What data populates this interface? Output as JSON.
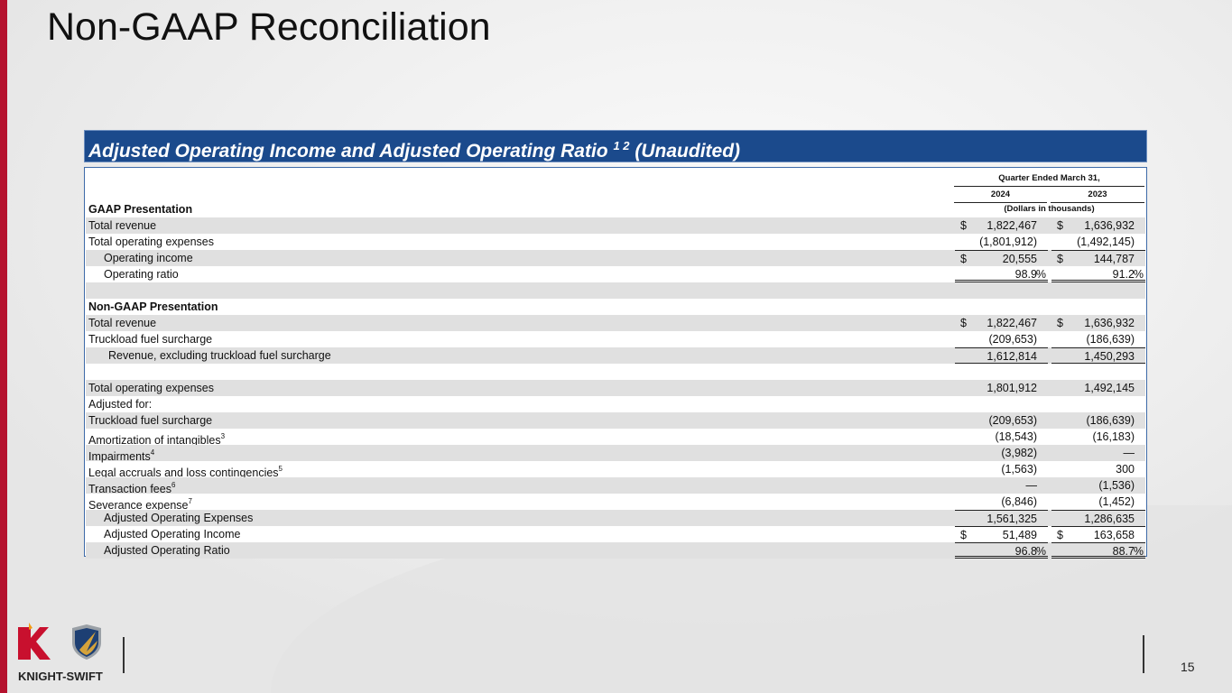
{
  "page_title": "Non-GAAP Reconciliation",
  "table_title": {
    "text": "Adjusted Operating Income and Adjusted Operating Ratio",
    "sup": "1 2",
    "suffix": "(Unaudited)"
  },
  "header": {
    "period": "Quarter Ended March 31,",
    "years": [
      "2024",
      "2023"
    ],
    "units": "(Dollars in thousands)"
  },
  "rows": [
    {
      "label": "GAAP Presentation",
      "bold": true
    },
    {
      "label": "Total revenue",
      "shade": true,
      "v": [
        "$",
        "1,822,467",
        "",
        "$",
        "1,636,932",
        ""
      ]
    },
    {
      "label": "Total operating expenses",
      "v": [
        "",
        "(1,801,912)",
        "",
        "",
        "(1,492,145)",
        ""
      ]
    },
    {
      "label": "Operating income",
      "indent": true,
      "shade": true,
      "v": [
        "$",
        "20,555",
        "",
        "$",
        "144,787",
        ""
      ]
    },
    {
      "label": "Operating ratio",
      "indent": true,
      "v": [
        "",
        "98.9",
        "%",
        "",
        "91.2",
        "%"
      ]
    },
    {
      "label": "",
      "shade": true
    },
    {
      "label": "Non-GAAP Presentation",
      "bold": true
    },
    {
      "label": "Total revenue",
      "shade": true,
      "v": [
        "$",
        "1,822,467",
        "",
        "$",
        "1,636,932",
        ""
      ]
    },
    {
      "label": "Truckload fuel surcharge",
      "v": [
        "",
        "(209,653)",
        "",
        "",
        "(186,639)",
        ""
      ]
    },
    {
      "label": "Revenue, excluding truckload fuel surcharge",
      "indent2": true,
      "shade": true,
      "v": [
        "",
        "1,612,814",
        "",
        "",
        "1,450,293",
        ""
      ]
    },
    {
      "label": ""
    },
    {
      "label": "Total operating expenses",
      "shade": true,
      "v": [
        "",
        "1,801,912",
        "",
        "",
        "1,492,145",
        ""
      ]
    },
    {
      "label": "Adjusted for:"
    },
    {
      "label": "Truckload fuel surcharge",
      "shade": true,
      "v": [
        "",
        "(209,653)",
        "",
        "",
        "(186,639)",
        ""
      ]
    },
    {
      "label": "Amortization of intangibles",
      "sup": "3",
      "v": [
        "",
        "(18,543)",
        "",
        "",
        "(16,183)",
        ""
      ]
    },
    {
      "label": "Impairments",
      "sup": "4",
      "shade": true,
      "v": [
        "",
        "(3,982)",
        "",
        "",
        "—",
        ""
      ]
    },
    {
      "label": "Legal accruals and loss contingencies",
      "sup": "5",
      "v": [
        "",
        "(1,563)",
        "",
        "",
        "300",
        ""
      ]
    },
    {
      "label": "Transaction fees",
      "sup": "6",
      "shade": true,
      "v": [
        "",
        "—",
        "",
        "",
        "(1,536)",
        ""
      ]
    },
    {
      "label": "Severance expense",
      "sup": "7",
      "v": [
        "",
        "(6,846)",
        "",
        "",
        "(1,452)",
        ""
      ]
    },
    {
      "label": "Adjusted Operating Expenses",
      "indent": true,
      "shade": true,
      "v": [
        "",
        "1,561,325",
        "",
        "",
        "1,286,635",
        ""
      ]
    },
    {
      "label": "Adjusted Operating Income",
      "indent": true,
      "v": [
        "$",
        "51,489",
        "",
        "$",
        "163,658",
        ""
      ]
    },
    {
      "label": "Adjusted Operating Ratio",
      "indent": true,
      "shade": true,
      "v": [
        "",
        "96.8",
        "%",
        "",
        "88.7",
        "%"
      ]
    }
  ],
  "footer": {
    "logo_text": "KNIGHT-SWIFT",
    "page_number": "15"
  },
  "colors": {
    "brand_red": "#b5122e",
    "title_bar": "#1b4a8c",
    "row_shade": "#e0e0e0"
  }
}
